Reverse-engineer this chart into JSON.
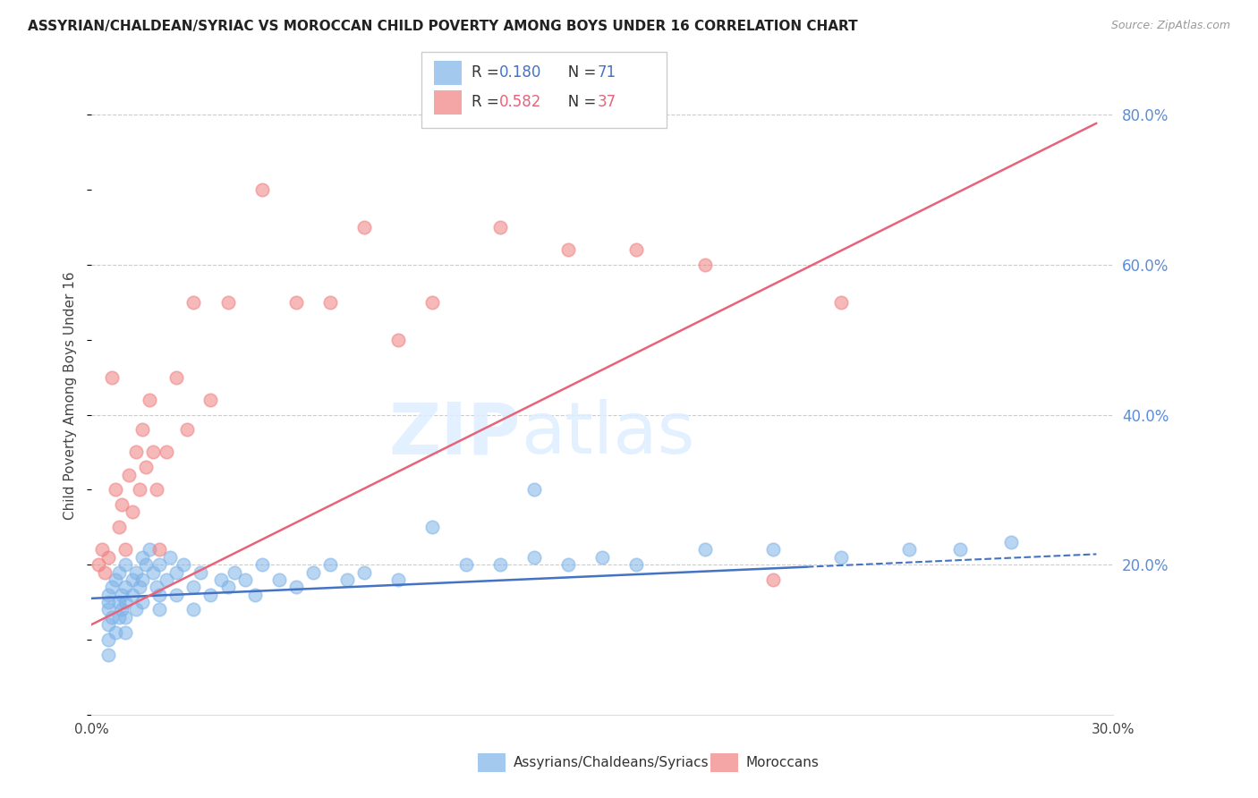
{
  "title": "ASSYRIAN/CHALDEAN/SYRIAC VS MOROCCAN CHILD POVERTY AMONG BOYS UNDER 16 CORRELATION CHART",
  "source": "Source: ZipAtlas.com",
  "ylabel": "Child Poverty Among Boys Under 16",
  "color_assyrian": "#7EB3E8",
  "color_moroccan": "#F08080",
  "color_line_blue": "#4472C4",
  "color_line_pink": "#E8637A",
  "color_yticks": "#5B8DD9",
  "color_source": "#999999",
  "color_grid": "#cccccc",
  "xlim": [
    0.0,
    0.3
  ],
  "ylim": [
    0.0,
    0.85
  ],
  "ytick_vals": [
    0.2,
    0.4,
    0.6,
    0.8
  ],
  "ytick_labels": [
    "20.0%",
    "40.0%",
    "60.0%",
    "80.0%"
  ],
  "blue_x": [
    0.005,
    0.005,
    0.005,
    0.005,
    0.005,
    0.005,
    0.006,
    0.006,
    0.007,
    0.007,
    0.008,
    0.008,
    0.008,
    0.009,
    0.009,
    0.01,
    0.01,
    0.01,
    0.01,
    0.01,
    0.012,
    0.012,
    0.013,
    0.013,
    0.014,
    0.015,
    0.015,
    0.015,
    0.016,
    0.017,
    0.018,
    0.019,
    0.02,
    0.02,
    0.02,
    0.022,
    0.023,
    0.025,
    0.025,
    0.027,
    0.03,
    0.03,
    0.032,
    0.035,
    0.038,
    0.04,
    0.042,
    0.045,
    0.048,
    0.05,
    0.055,
    0.06,
    0.065,
    0.07,
    0.075,
    0.08,
    0.09,
    0.1,
    0.11,
    0.12,
    0.13,
    0.14,
    0.15,
    0.16,
    0.18,
    0.2,
    0.22,
    0.24,
    0.255,
    0.27,
    0.13
  ],
  "blue_y": [
    0.15,
    0.14,
    0.16,
    0.1,
    0.08,
    0.12,
    0.17,
    0.13,
    0.18,
    0.11,
    0.15,
    0.19,
    0.13,
    0.16,
    0.14,
    0.2,
    0.17,
    0.15,
    0.13,
    0.11,
    0.18,
    0.16,
    0.19,
    0.14,
    0.17,
    0.21,
    0.18,
    0.15,
    0.2,
    0.22,
    0.19,
    0.17,
    0.2,
    0.16,
    0.14,
    0.18,
    0.21,
    0.19,
    0.16,
    0.2,
    0.17,
    0.14,
    0.19,
    0.16,
    0.18,
    0.17,
    0.19,
    0.18,
    0.16,
    0.2,
    0.18,
    0.17,
    0.19,
    0.2,
    0.18,
    0.19,
    0.18,
    0.25,
    0.2,
    0.2,
    0.21,
    0.2,
    0.21,
    0.2,
    0.22,
    0.22,
    0.21,
    0.22,
    0.22,
    0.23,
    0.3
  ],
  "pink_x": [
    0.002,
    0.003,
    0.004,
    0.005,
    0.006,
    0.007,
    0.008,
    0.009,
    0.01,
    0.011,
    0.012,
    0.013,
    0.014,
    0.015,
    0.016,
    0.017,
    0.018,
    0.019,
    0.02,
    0.022,
    0.025,
    0.028,
    0.03,
    0.035,
    0.04,
    0.05,
    0.06,
    0.07,
    0.08,
    0.09,
    0.1,
    0.12,
    0.14,
    0.16,
    0.18,
    0.2,
    0.22
  ],
  "pink_y": [
    0.2,
    0.22,
    0.19,
    0.21,
    0.45,
    0.3,
    0.25,
    0.28,
    0.22,
    0.32,
    0.27,
    0.35,
    0.3,
    0.38,
    0.33,
    0.42,
    0.35,
    0.3,
    0.22,
    0.35,
    0.45,
    0.38,
    0.55,
    0.42,
    0.55,
    0.7,
    0.55,
    0.55,
    0.65,
    0.5,
    0.55,
    0.65,
    0.62,
    0.62,
    0.6,
    0.18,
    0.55
  ],
  "blue_line_x_solid_end": 0.21,
  "blue_line_x_end": 0.3,
  "pink_line_x_start": 0.0,
  "pink_line_x_end": 0.3
}
